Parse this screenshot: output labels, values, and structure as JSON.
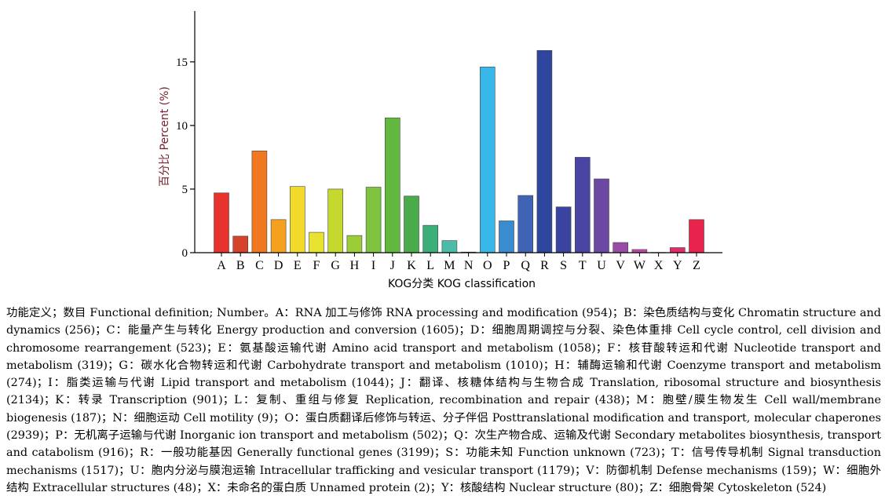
{
  "chart_data": {
    "type": "bar",
    "categories": [
      "A",
      "B",
      "C",
      "D",
      "E",
      "F",
      "G",
      "H",
      "I",
      "J",
      "K",
      "L",
      "M",
      "N",
      "O",
      "P",
      "Q",
      "R",
      "S",
      "T",
      "U",
      "V",
      "W",
      "X",
      "Y",
      "Z"
    ],
    "values": [
      4.7,
      1.3,
      8.0,
      2.6,
      5.2,
      1.6,
      5.0,
      1.35,
      5.15,
      10.6,
      4.45,
      2.15,
      0.95,
      0.05,
      14.6,
      2.5,
      4.5,
      15.9,
      3.6,
      7.5,
      5.8,
      0.8,
      0.25,
      0.02,
      0.4,
      2.6
    ],
    "colors": [
      "#e8322e",
      "#d6432c",
      "#f07820",
      "#f6a020",
      "#f2d92c",
      "#e8e230",
      "#c4d82e",
      "#9ccc38",
      "#7ec440",
      "#62b83e",
      "#4aab4a",
      "#3cae78",
      "#4abca8",
      "#6ecab8",
      "#38b8e8",
      "#3a8cd0",
      "#3f64b4",
      "#2f469e",
      "#3a44a0",
      "#4a44a4",
      "#6a48a4",
      "#9a4aa8",
      "#c248a8",
      "#d24890",
      "#e02c6c",
      "#e8244c"
    ],
    "title": "",
    "xlabel": "KOG分类 KOG classification",
    "ylabel": "百分比 Percent (%)",
    "ylim": [
      0,
      19
    ],
    "yticks": [
      0,
      5,
      10,
      15
    ],
    "grid": false,
    "legend": "none"
  },
  "caption": "功能定义；数目 Functional definition; Number。A：RNA 加工与修饰 RNA processing and modification (954)；B：染色质结构与变化 Chromatin structure and dynamics (256)；C：能量产生与转化 Energy production and conversion (1605)；D：细胞周期调控与分裂、染色体重排 Cell cycle control, cell division and chromosome rearrangement (523)；E：氨基酸运输代谢 Amino acid transport and metabolism (1058)；F：核苷酸转运和代谢 Nucleotide transport and metabolism (319)；G：碳水化合物转运和代谢 Carbohydrate transport and metabolism (1010)；H：辅酶运输和代谢 Coenzyme transport and metabolism (274)；I：脂类运输与代谢 Lipid transport and metabolism (1044)；J：翻译、核糖体结构与生物合成 Translation, ribosomal structure and biosynthesis (2134)；K：转录 Transcription (901)；L：复制、重组与修复 Replication, recombination and repair (438)；M：胞壁/膜生物发生 Cell wall/membrane biogenesis (187)；N：细胞运动 Cell motility (9)；O：蛋白质翻译后修饰与转运、分子伴侣 Posttranslational modification and transport, molecular chaperones (2939)；P：无机离子运输与代谢 Inorganic ion transport and metabolism (502)；Q：次生产物合成、运输及代谢 Secondary metabolites biosynthesis, transport and catabolism (916)；R：一般功能基因 Generally functional genes (3199)；S：功能未知 Function unknown (723)；T：信号传导机制 Signal transduction mechanisms (1517)；U：胞内分泌与膜泡运输 Intracellular trafficking and vesicular transport (1179)；V：防御机制 Defense mechanisms (159)；W：细胞外结构 Extracellular structures (48)；X：未命名的蛋白质 Unnamed protein (2)；Y：核酸结构 Nuclear structure (80)；Z：细胞骨架 Cytoskeleton (524)"
}
